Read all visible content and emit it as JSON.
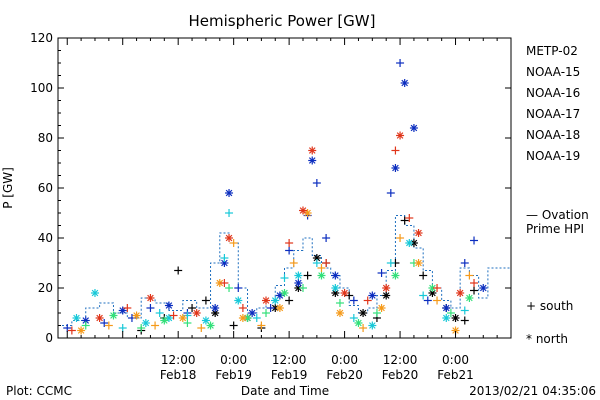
{
  "chart_data": {
    "type": "scatter",
    "title": "Hemispheric Power [GW]",
    "ylabel": "P [GW]",
    "xlabel": "Date and Time",
    "ylim": [
      0,
      120
    ],
    "y_ticks": [
      0,
      20,
      40,
      60,
      80,
      100,
      120
    ],
    "x_range_hours": [
      -14,
      84
    ],
    "x_ticks": [
      {
        "hour": 12,
        "time": "12:00",
        "date": "Feb18"
      },
      {
        "hour": 24,
        "time": "0:00",
        "date": "Feb19"
      },
      {
        "hour": 36,
        "time": "12:00",
        "date": "Feb19"
      },
      {
        "hour": 48,
        "time": "0:00",
        "date": "Feb20"
      },
      {
        "hour": 60,
        "time": "12:00",
        "date": "Feb20"
      },
      {
        "hour": 72,
        "time": "0:00",
        "date": "Feb21"
      }
    ],
    "footer_left": "Plot: CCMC",
    "footer_right": "2013/02/21 04:35:06",
    "ovation_label_1": "— Ovation",
    "ovation_label_2": "Prime HPI",
    "ovation_color": "#1f6fbf",
    "marker_south_label": "+ south",
    "marker_north_label": "* north",
    "series": [
      {
        "name": "METP-02",
        "color": "#000000",
        "points": [
          [
            4,
            3,
            "+"
          ],
          [
            9,
            8,
            "+"
          ],
          [
            12,
            27,
            "+"
          ],
          [
            15,
            12,
            "+"
          ],
          [
            18,
            15,
            "+"
          ],
          [
            20,
            10,
            "*"
          ],
          [
            24,
            5,
            "+"
          ],
          [
            27,
            8,
            "*"
          ],
          [
            30,
            4,
            "+"
          ],
          [
            33,
            12,
            "*"
          ],
          [
            36,
            15,
            "+"
          ],
          [
            38,
            20,
            "*"
          ],
          [
            40,
            25,
            "+"
          ],
          [
            42,
            32,
            "*"
          ],
          [
            44,
            30,
            "+"
          ],
          [
            46,
            18,
            "*"
          ],
          [
            49,
            17,
            "+"
          ],
          [
            52,
            10,
            "*"
          ],
          [
            55,
            8,
            "+"
          ],
          [
            57,
            17,
            "*"
          ],
          [
            59,
            30,
            "+"
          ],
          [
            61,
            47,
            "+"
          ],
          [
            63,
            38,
            "*"
          ],
          [
            65,
            25,
            "+"
          ],
          [
            67,
            18,
            "*"
          ],
          [
            70,
            12,
            "+"
          ],
          [
            72,
            8,
            "*"
          ],
          [
            74,
            7,
            "+"
          ],
          [
            76,
            19,
            "+"
          ]
        ]
      },
      {
        "name": "NOAA-15",
        "color": "#0b2dbf",
        "points": [
          [
            -12,
            4,
            "+"
          ],
          [
            -8,
            7,
            "*"
          ],
          [
            -4,
            6,
            "+"
          ],
          [
            0,
            11,
            "*"
          ],
          [
            2,
            8,
            "+"
          ],
          [
            6,
            12,
            "+"
          ],
          [
            10,
            13,
            "*"
          ],
          [
            14,
            10,
            "+"
          ],
          [
            20,
            12,
            "*"
          ],
          [
            22,
            30,
            "*"
          ],
          [
            23,
            58,
            "*"
          ],
          [
            25,
            20,
            "+"
          ],
          [
            28,
            10,
            "*"
          ],
          [
            32,
            12,
            "+"
          ],
          [
            34,
            17,
            "*"
          ],
          [
            36,
            35,
            "+"
          ],
          [
            38,
            22,
            "*"
          ],
          [
            40,
            49,
            "+"
          ],
          [
            41,
            71,
            "*"
          ],
          [
            42,
            62,
            "+"
          ],
          [
            44,
            40,
            "+"
          ],
          [
            46,
            25,
            "*"
          ],
          [
            50,
            15,
            "+"
          ],
          [
            54,
            17,
            "*"
          ],
          [
            56,
            26,
            "+"
          ],
          [
            58,
            58,
            "+"
          ],
          [
            59,
            68,
            "*"
          ],
          [
            60,
            110,
            "+"
          ],
          [
            61,
            102,
            "*"
          ],
          [
            63,
            84,
            "*"
          ],
          [
            66,
            15,
            "+"
          ],
          [
            70,
            12,
            "*"
          ],
          [
            74,
            30,
            "+"
          ],
          [
            76,
            39,
            "+"
          ],
          [
            78,
            20,
            "*"
          ]
        ]
      },
      {
        "name": "NOAA-16",
        "color": "#17c8d8",
        "points": [
          [
            -10,
            8,
            "*"
          ],
          [
            -6,
            18,
            "*"
          ],
          [
            0,
            4,
            "+"
          ],
          [
            5,
            6,
            "*"
          ],
          [
            8,
            10,
            "+"
          ],
          [
            10,
            8,
            "*"
          ],
          [
            14,
            9,
            "+"
          ],
          [
            18,
            7,
            "*"
          ],
          [
            22,
            32,
            "+"
          ],
          [
            23,
            50,
            "+"
          ],
          [
            25,
            15,
            "*"
          ],
          [
            29,
            8,
            "+"
          ],
          [
            33,
            15,
            "*"
          ],
          [
            35,
            24,
            "+"
          ],
          [
            38,
            25,
            "*"
          ],
          [
            42,
            30,
            "+"
          ],
          [
            46,
            20,
            "*"
          ],
          [
            50,
            8,
            "+"
          ],
          [
            54,
            5,
            "*"
          ],
          [
            58,
            30,
            "+"
          ],
          [
            62,
            38,
            "*"
          ],
          [
            65,
            17,
            "+"
          ],
          [
            70,
            8,
            "*"
          ],
          [
            74,
            11,
            "+"
          ]
        ]
      },
      {
        "name": "NOAA-17",
        "color": "#33e07a",
        "points": [
          [
            -8,
            5,
            "+"
          ],
          [
            -2,
            9,
            "*"
          ],
          [
            4,
            4,
            "+"
          ],
          [
            9,
            7,
            "*"
          ],
          [
            14,
            6,
            "+"
          ],
          [
            19,
            5,
            "*"
          ],
          [
            23,
            20,
            "+"
          ],
          [
            27,
            8,
            "*"
          ],
          [
            31,
            10,
            "+"
          ],
          [
            35,
            18,
            "*"
          ],
          [
            39,
            20,
            "+"
          ],
          [
            43,
            25,
            "*"
          ],
          [
            47,
            14,
            "+"
          ],
          [
            51,
            6,
            "*"
          ],
          [
            55,
            10,
            "+"
          ],
          [
            59,
            25,
            "*"
          ],
          [
            63,
            30,
            "+"
          ],
          [
            67,
            20,
            "*"
          ],
          [
            71,
            10,
            "+"
          ],
          [
            75,
            16,
            "*"
          ]
        ]
      },
      {
        "name": "NOAA-18",
        "color": "#f59a1a",
        "points": [
          [
            -9,
            3,
            "*"
          ],
          [
            -3,
            5,
            "+"
          ],
          [
            3,
            9,
            "*"
          ],
          [
            7,
            5,
            "+"
          ],
          [
            13,
            8,
            "*"
          ],
          [
            17,
            4,
            "+"
          ],
          [
            21,
            22,
            "*"
          ],
          [
            24,
            38,
            "+"
          ],
          [
            26,
            8,
            "*"
          ],
          [
            30,
            5,
            "+"
          ],
          [
            34,
            12,
            "*"
          ],
          [
            37,
            30,
            "+"
          ],
          [
            40,
            50,
            "*"
          ],
          [
            43,
            28,
            "+"
          ],
          [
            47,
            10,
            "*"
          ],
          [
            52,
            4,
            "+"
          ],
          [
            56,
            12,
            "*"
          ],
          [
            60,
            40,
            "+"
          ],
          [
            64,
            30,
            "*"
          ],
          [
            68,
            15,
            "+"
          ],
          [
            72,
            3,
            "*"
          ],
          [
            75,
            25,
            "+"
          ]
        ]
      },
      {
        "name": "NOAA-19",
        "color": "#e0351a",
        "points": [
          [
            -11,
            3,
            "+"
          ],
          [
            -5,
            8,
            "*"
          ],
          [
            1,
            12,
            "+"
          ],
          [
            6,
            16,
            "*"
          ],
          [
            11,
            9,
            "+"
          ],
          [
            16,
            10,
            "*"
          ],
          [
            22,
            22,
            "+"
          ],
          [
            23,
            40,
            "*"
          ],
          [
            26,
            12,
            "+"
          ],
          [
            31,
            15,
            "*"
          ],
          [
            36,
            38,
            "+"
          ],
          [
            39,
            51,
            "*"
          ],
          [
            41,
            75,
            "*"
          ],
          [
            44,
            30,
            "+"
          ],
          [
            48,
            18,
            "*"
          ],
          [
            53,
            15,
            "+"
          ],
          [
            57,
            20,
            "*"
          ],
          [
            59,
            75,
            "+"
          ],
          [
            60,
            81,
            "*"
          ],
          [
            62,
            48,
            "+"
          ],
          [
            64,
            42,
            "*"
          ],
          [
            68,
            20,
            "+"
          ],
          [
            73,
            18,
            "*"
          ],
          [
            76,
            22,
            "+"
          ]
        ]
      }
    ],
    "ovation_hpi_steps": [
      [
        -14,
        5
      ],
      [
        -11,
        7
      ],
      [
        -8,
        12
      ],
      [
        -5,
        14
      ],
      [
        -2,
        10
      ],
      [
        1,
        8
      ],
      [
        4,
        16
      ],
      [
        7,
        14
      ],
      [
        10,
        11
      ],
      [
        13,
        15
      ],
      [
        16,
        12
      ],
      [
        19,
        30
      ],
      [
        21,
        42
      ],
      [
        23,
        38
      ],
      [
        25,
        20
      ],
      [
        27,
        10
      ],
      [
        29,
        12
      ],
      [
        31,
        15
      ],
      [
        33,
        21
      ],
      [
        35,
        28
      ],
      [
        37,
        35
      ],
      [
        39,
        40
      ],
      [
        41,
        33
      ],
      [
        43,
        28
      ],
      [
        45,
        25
      ],
      [
        47,
        20
      ],
      [
        49,
        13
      ],
      [
        51,
        10
      ],
      [
        53,
        12
      ],
      [
        55,
        17
      ],
      [
        57,
        27
      ],
      [
        59,
        49
      ],
      [
        61,
        45
      ],
      [
        63,
        36
      ],
      [
        65,
        27
      ],
      [
        67,
        20
      ],
      [
        69,
        15
      ],
      [
        71,
        12
      ],
      [
        73,
        28
      ],
      [
        75,
        25
      ],
      [
        77,
        16
      ],
      [
        79,
        28
      ],
      [
        81,
        28
      ]
    ]
  }
}
